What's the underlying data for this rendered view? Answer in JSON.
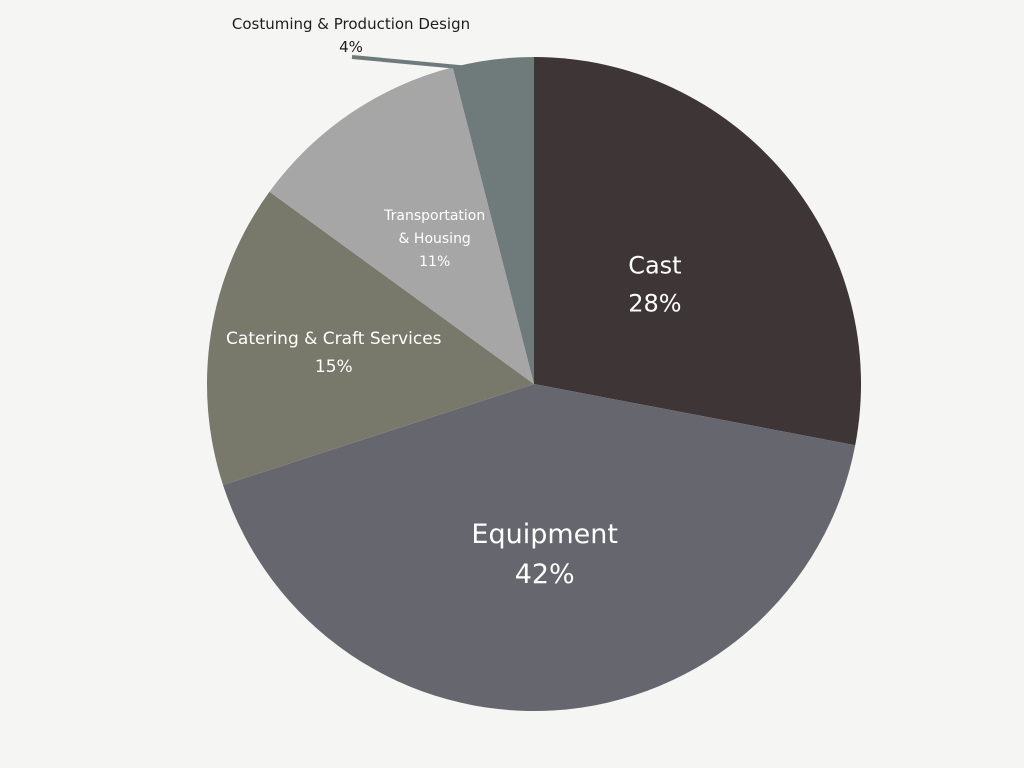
{
  "chart_data": {
    "type": "pie",
    "start_angle_deg": 0,
    "direction": "clockwise",
    "slices": [
      {
        "label": "Cast",
        "value": 28,
        "value_label": "28%",
        "color": "#3d3536",
        "label_style": "inside-large"
      },
      {
        "label": "Equipment",
        "value": 42,
        "value_label": "42%",
        "color": "#66666e",
        "label_style": "inside-xlarge"
      },
      {
        "label": "Catering & Craft Services",
        "value": 15,
        "value_label": "15%",
        "color": "#78786b",
        "label_style": "inside"
      },
      {
        "label": "Transportation & Housing",
        "value": 11,
        "value_label": "11%",
        "color": "#a6a6a6",
        "label_style": "inside-small"
      },
      {
        "label": "Costuming & Production Design",
        "value": 4,
        "value_label": "4%",
        "color": "#6f7b7a",
        "label_style": "outside-callout"
      }
    ],
    "background": "#f5f5f3"
  }
}
